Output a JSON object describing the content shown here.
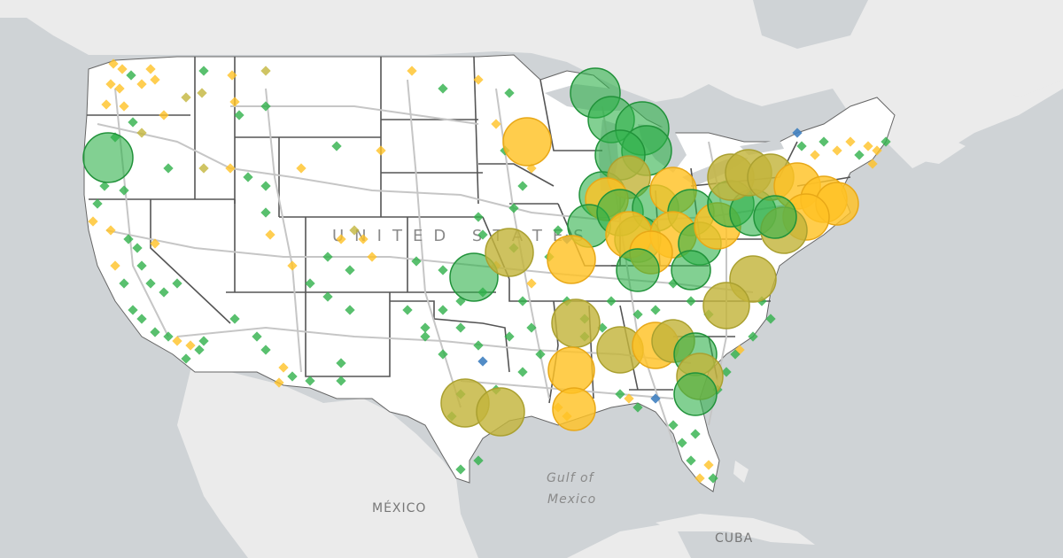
{
  "map": {
    "labels": {
      "country": "UNITED STATES",
      "gulf_line1": "Gulf of",
      "gulf_line2": "Mexico",
      "mexico": "MÉXICO",
      "cuba": "CUBA"
    },
    "colors": {
      "water": "#cfd3d6",
      "land": "#efefef",
      "usa": "#ffffff",
      "state_border": "#555555",
      "highway": "#c9c9c9",
      "green": "#2fb04a",
      "yellow": "#ffc225",
      "olive": "#c3b53c",
      "blue": "#3f7fc0"
    }
  }
}
